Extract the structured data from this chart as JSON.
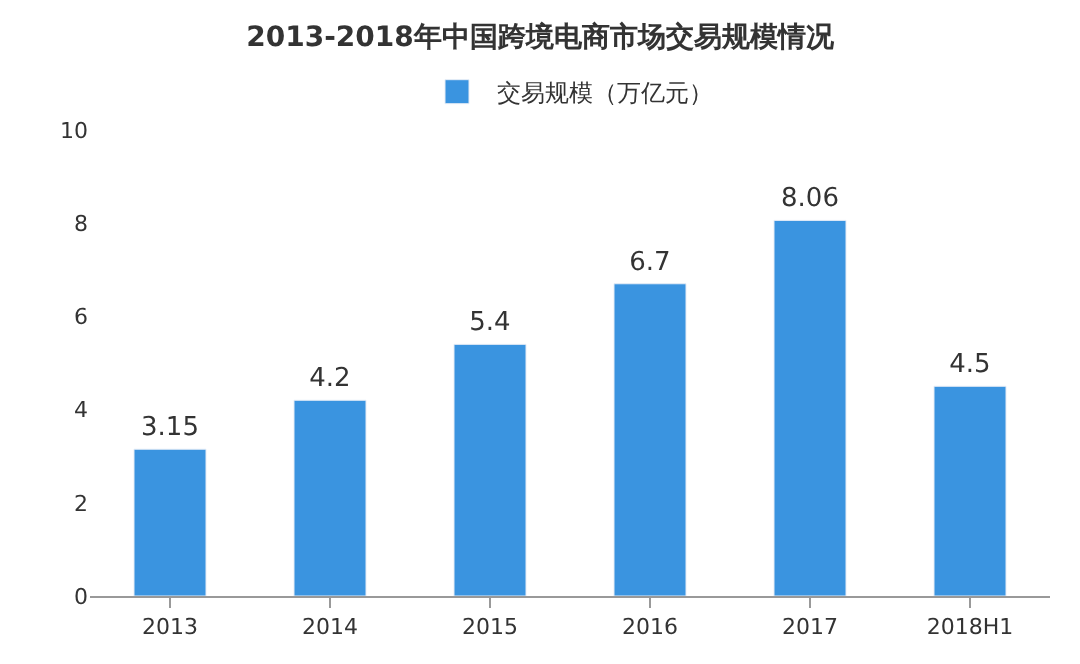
{
  "chart_data": {
    "type": "bar",
    "title": "2013-2018年中国跨境电商市场交易规模情况",
    "categories": [
      "2013",
      "2014",
      "2015",
      "2016",
      "2017",
      "2018H1"
    ],
    "series": [
      {
        "name": "交易规模（万亿元）",
        "color": "#3a94e0",
        "values": [
          3.15,
          4.2,
          5.4,
          6.7,
          8.06,
          4.5
        ]
      }
    ],
    "ylim": [
      0,
      10
    ],
    "yticks": [
      0,
      2,
      4,
      6,
      8,
      10
    ],
    "data_labels": true,
    "legend": "top",
    "grid": false
  }
}
